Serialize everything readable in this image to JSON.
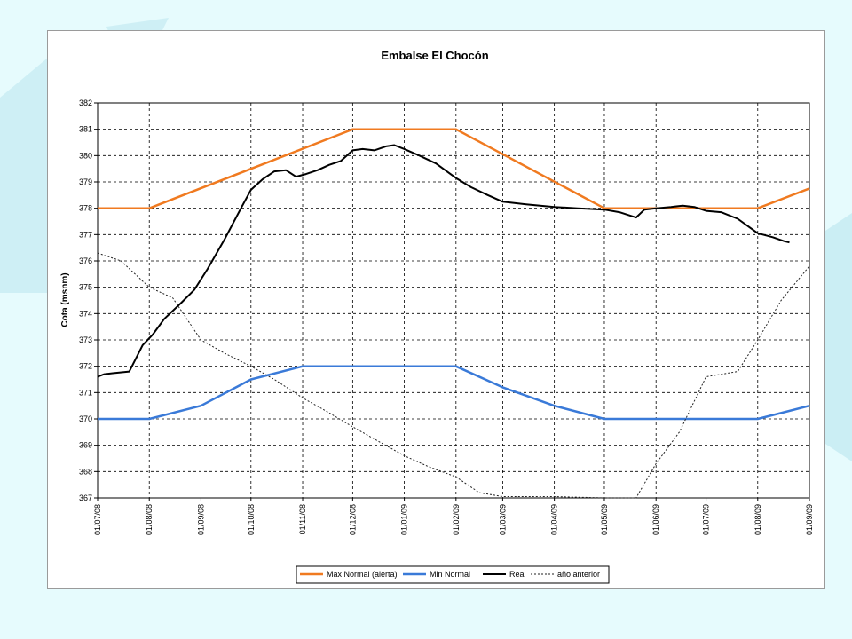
{
  "colors": {
    "background": "#e6fbfd",
    "decoration": "#b9e6ee",
    "max_normal": "#f07a20",
    "min_normal": "#3a7ad8",
    "real": "#000000",
    "anio_anterior": "#222222"
  },
  "chart_data": {
    "type": "line",
    "title": "Embalse El Chocón",
    "xlabel": "",
    "ylabel": "Cota (msnm)",
    "ylim": [
      367,
      382
    ],
    "yticks": [
      367,
      368,
      369,
      370,
      371,
      372,
      373,
      374,
      375,
      376,
      377,
      378,
      379,
      380,
      381,
      382
    ],
    "x_ticks": [
      "01/07/08",
      "01/08/08",
      "01/09/08",
      "01/10/08",
      "01/11/08",
      "01/12/08",
      "01/01/09",
      "01/02/09",
      "01/03/09",
      "01/04/09",
      "01/05/09",
      "01/06/09",
      "01/07/09",
      "01/08/09",
      "01/09/09"
    ],
    "grid": true,
    "legend_position": "bottom",
    "series": [
      {
        "name": "Max Normal (alerta)",
        "style": "solid",
        "color": "#f07a20",
        "points": [
          [
            "2008-07-01",
            378
          ],
          [
            "2008-08-01",
            378
          ],
          [
            "2008-12-01",
            381
          ],
          [
            "2009-02-01",
            381
          ],
          [
            "2009-05-01",
            378
          ],
          [
            "2009-08-01",
            378
          ],
          [
            "2009-09-01",
            378.75
          ]
        ]
      },
      {
        "name": "Min Normal",
        "style": "solid",
        "color": "#3a7ad8",
        "points": [
          [
            "2008-07-01",
            370
          ],
          [
            "2008-08-01",
            370
          ],
          [
            "2008-09-01",
            370.5
          ],
          [
            "2008-10-01",
            371.5
          ],
          [
            "2008-11-01",
            372
          ],
          [
            "2009-02-01",
            372
          ],
          [
            "2009-03-01",
            371.2
          ],
          [
            "2009-04-01",
            370.5
          ],
          [
            "2009-05-01",
            370
          ],
          [
            "2009-08-01",
            370
          ],
          [
            "2009-09-01",
            370.5
          ]
        ]
      },
      {
        "name": "Real",
        "style": "solid",
        "color": "#000000",
        "points": [
          [
            "2008-07-01",
            371.6
          ],
          [
            "2008-07-05",
            371.7
          ],
          [
            "2008-07-12",
            371.75
          ],
          [
            "2008-07-20",
            371.8
          ],
          [
            "2008-07-24",
            372.3
          ],
          [
            "2008-07-28",
            372.8
          ],
          [
            "2008-08-03",
            373.2
          ],
          [
            "2008-08-10",
            373.8
          ],
          [
            "2008-08-20",
            374.4
          ],
          [
            "2008-08-28",
            374.9
          ],
          [
            "2008-09-05",
            375.7
          ],
          [
            "2008-09-15",
            376.8
          ],
          [
            "2008-09-25",
            378.0
          ],
          [
            "2008-10-01",
            378.7
          ],
          [
            "2008-10-08",
            379.1
          ],
          [
            "2008-10-15",
            379.4
          ],
          [
            "2008-10-22",
            379.45
          ],
          [
            "2008-10-28",
            379.2
          ],
          [
            "2008-11-03",
            379.3
          ],
          [
            "2008-11-10",
            379.45
          ],
          [
            "2008-11-17",
            379.65
          ],
          [
            "2008-11-24",
            379.8
          ],
          [
            "2008-12-01",
            380.2
          ],
          [
            "2008-12-07",
            380.25
          ],
          [
            "2008-12-14",
            380.2
          ],
          [
            "2008-12-21",
            380.35
          ],
          [
            "2008-12-26",
            380.4
          ],
          [
            "2009-01-01",
            380.25
          ],
          [
            "2009-01-10",
            380.0
          ],
          [
            "2009-01-20",
            379.7
          ],
          [
            "2009-02-01",
            379.15
          ],
          [
            "2009-02-10",
            378.8
          ],
          [
            "2009-02-20",
            378.5
          ],
          [
            "2009-03-01",
            378.25
          ],
          [
            "2009-03-15",
            378.15
          ],
          [
            "2009-04-01",
            378.05
          ],
          [
            "2009-04-15",
            378.0
          ],
          [
            "2009-05-01",
            377.95
          ],
          [
            "2009-05-10",
            377.85
          ],
          [
            "2009-05-20",
            377.65
          ],
          [
            "2009-05-25",
            377.95
          ],
          [
            "2009-06-01",
            378.0
          ],
          [
            "2009-06-10",
            378.05
          ],
          [
            "2009-06-17",
            378.1
          ],
          [
            "2009-06-24",
            378.05
          ],
          [
            "2009-07-01",
            377.9
          ],
          [
            "2009-07-10",
            377.85
          ],
          [
            "2009-07-20",
            377.6
          ],
          [
            "2009-08-01",
            377.05
          ],
          [
            "2009-08-10",
            376.9
          ],
          [
            "2009-08-17",
            376.75
          ],
          [
            "2009-08-20",
            376.7
          ]
        ]
      },
      {
        "name": "año anterior",
        "style": "dotted",
        "color": "#222222",
        "points": [
          [
            "2008-07-01",
            376.3
          ],
          [
            "2008-07-15",
            376.0
          ],
          [
            "2008-08-01",
            375.0
          ],
          [
            "2008-08-15",
            374.6
          ],
          [
            "2008-09-01",
            373.0
          ],
          [
            "2008-09-15",
            372.5
          ],
          [
            "2008-10-01",
            372.0
          ],
          [
            "2008-10-15",
            371.5
          ],
          [
            "2008-11-01",
            370.8
          ],
          [
            "2008-11-15",
            370.3
          ],
          [
            "2008-12-01",
            369.7
          ],
          [
            "2008-12-15",
            369.2
          ],
          [
            "2009-01-01",
            368.6
          ],
          [
            "2009-01-15",
            368.2
          ],
          [
            "2009-02-01",
            367.8
          ],
          [
            "2009-02-15",
            367.2
          ],
          [
            "2009-03-01",
            367.05
          ],
          [
            "2009-04-01",
            367.05
          ],
          [
            "2009-05-01",
            367.0
          ],
          [
            "2009-05-20",
            367.0
          ],
          [
            "2009-06-01",
            368.3
          ],
          [
            "2009-06-15",
            369.5
          ],
          [
            "2009-07-01",
            371.6
          ],
          [
            "2009-07-20",
            371.8
          ],
          [
            "2009-08-01",
            373.0
          ],
          [
            "2009-08-15",
            374.5
          ],
          [
            "2009-09-01",
            375.8
          ]
        ]
      }
    ]
  }
}
